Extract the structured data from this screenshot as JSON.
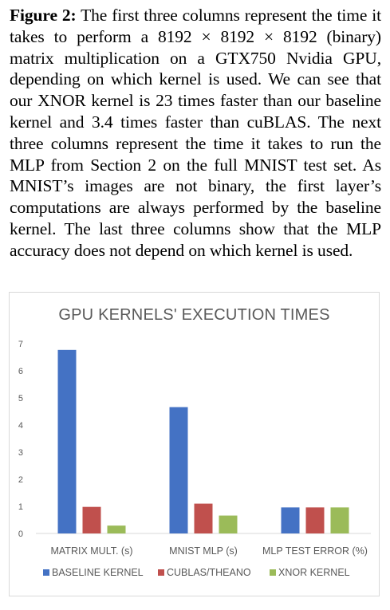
{
  "caption": {
    "label": "Figure 2:",
    "text": "The first three columns represent the time it takes to perform a 8192 × 8192 × 8192 (binary) matrix multiplication on a GTX750 Nvidia GPU, depending on which kernel is used. We can see that our XNOR kernel is 23 times faster than our baseline kernel and 3.4 times faster than cuBLAS. The next three columns represent the time it takes to run the MLP from Section 2 on the full MNIST test set. As MNIST’s images are not binary, the first layer’s computations are always performed by the baseline kernel. The last three columns show that the MLP accuracy does not depend on which kernel is used."
  },
  "chart_data": {
    "type": "bar",
    "title": "GPU KERNELS' EXECUTION TIMES",
    "xlabel": "",
    "ylabel": "",
    "categories": [
      "MATRIX MULT. (s)",
      "MNIST MLP (s)",
      "MLP TEST ERROR (%)"
    ],
    "series": [
      {
        "name": "BASELINE KERNEL",
        "color": "#4472c4",
        "values": [
          6.77,
          4.66,
          0.96
        ]
      },
      {
        "name": "CUBLAS/THEANO",
        "color": "#c0504d",
        "values": [
          0.98,
          1.1,
          0.96
        ]
      },
      {
        "name": "XNOR KERNEL",
        "color": "#9bbb59",
        "values": [
          0.29,
          0.66,
          0.96
        ]
      }
    ],
    "ylim": [
      0,
      7
    ],
    "yticks": [
      "0",
      "1",
      "2",
      "3",
      "4",
      "5",
      "6",
      "7"
    ],
    "grid": false,
    "legend": "bottom"
  }
}
